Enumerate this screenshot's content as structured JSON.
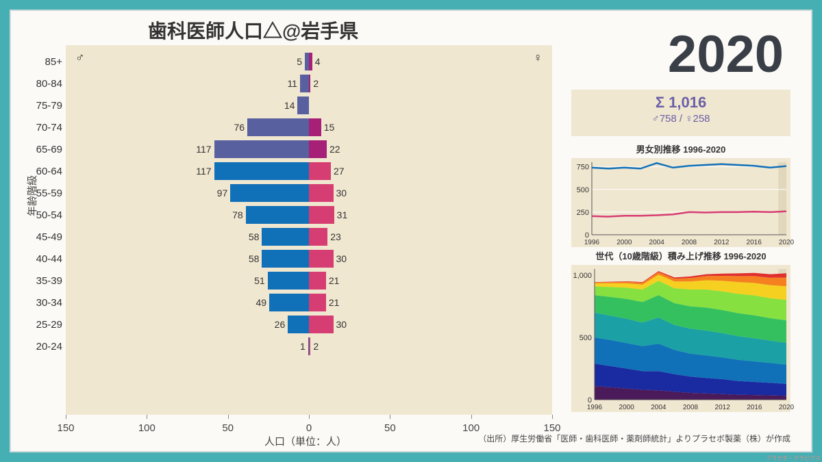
{
  "title": "歯科医師人口△@岩手県",
  "year": "2020",
  "summary": {
    "sigma": "Σ 1,016",
    "mf": "♂758 / ♀258"
  },
  "y_axis_label": "年齢階級",
  "x_axis_label": "人口（単位：人）",
  "signature": "プラセボ・グラピクス",
  "source": "（出所）厚生労働省「医師・歯科医師・薬剤師統計」よりプラセボ製薬（株）が作成",
  "pyramid": {
    "male_symbol": "♂",
    "female_symbol": "♀",
    "scale_max": 150,
    "xticks": [
      150,
      100,
      50,
      0,
      50,
      100,
      150
    ],
    "rows": [
      {
        "age": "85+",
        "m": 5,
        "f": 4,
        "old": true
      },
      {
        "age": "80-84",
        "m": 11,
        "f": 2,
        "old": true
      },
      {
        "age": "75-79",
        "m": 14,
        "f": 0,
        "old": true
      },
      {
        "age": "70-74",
        "m": 76,
        "f": 15,
        "old": true
      },
      {
        "age": "65-69",
        "m": 117,
        "f": 22,
        "old": true
      },
      {
        "age": "60-64",
        "m": 117,
        "f": 27,
        "old": false
      },
      {
        "age": "55-59",
        "m": 97,
        "f": 30,
        "old": false
      },
      {
        "age": "50-54",
        "m": 78,
        "f": 31,
        "old": false
      },
      {
        "age": "45-49",
        "m": 58,
        "f": 23,
        "old": false
      },
      {
        "age": "40-44",
        "m": 58,
        "f": 30,
        "old": false
      },
      {
        "age": "35-39",
        "m": 51,
        "f": 21,
        "old": false
      },
      {
        "age": "30-34",
        "m": 49,
        "f": 21,
        "old": false
      },
      {
        "age": "25-29",
        "m": 26,
        "f": 30,
        "old": false
      },
      {
        "age": "20-24",
        "m": 1,
        "f": 2,
        "old": false
      }
    ]
  },
  "mini1": {
    "title": "男女別推移 1996-2020",
    "ylim": [
      0,
      800
    ],
    "yticks": [
      0,
      250,
      500,
      750
    ],
    "years": [
      1996,
      1998,
      2000,
      2002,
      2004,
      2006,
      2008,
      2010,
      2012,
      2014,
      2016,
      2018,
      2020
    ],
    "xticks": [
      1996,
      2000,
      2004,
      2008,
      2012,
      2016,
      2020
    ],
    "male": [
      740,
      730,
      740,
      730,
      790,
      740,
      760,
      770,
      780,
      770,
      760,
      740,
      758
    ],
    "female": [
      205,
      200,
      210,
      210,
      215,
      225,
      250,
      245,
      250,
      250,
      255,
      250,
      258
    ],
    "male_color": "#1070b8",
    "female_color": "#d63d72",
    "highlight": "#e0d7bd"
  },
  "mini2": {
    "title": "世代（10歳階級）積み上げ推移 1996-2020",
    "ylim": [
      0,
      1050
    ],
    "yticks": [
      0,
      500,
      1000
    ],
    "xticks": [
      1996,
      2000,
      2004,
      2008,
      2012,
      2016,
      2020
    ],
    "years": [
      1996,
      1998,
      2000,
      2002,
      2004,
      2006,
      2008,
      2010,
      2012,
      2014,
      2016,
      2018,
      2020
    ],
    "colors": [
      "#4a1a5a",
      "#1a2aa0",
      "#1070b8",
      "#1aa0a5",
      "#35c060",
      "#85e040",
      "#f5d020",
      "#f58020",
      "#e03030"
    ],
    "series": [
      [
        110,
        100,
        90,
        80,
        75,
        65,
        55,
        50,
        45,
        40,
        38,
        35,
        32
      ],
      [
        180,
        170,
        160,
        150,
        155,
        140,
        130,
        125,
        120,
        110,
        105,
        100,
        95
      ],
      [
        210,
        210,
        205,
        200,
        220,
        195,
        185,
        180,
        175,
        170,
        165,
        160,
        155
      ],
      [
        200,
        195,
        195,
        190,
        210,
        200,
        200,
        200,
        195,
        190,
        185,
        180,
        175
      ],
      [
        140,
        150,
        160,
        165,
        180,
        175,
        180,
        185,
        185,
        185,
        185,
        180,
        180
      ],
      [
        70,
        80,
        90,
        100,
        115,
        120,
        135,
        145,
        150,
        155,
        160,
        160,
        165
      ],
      [
        25,
        30,
        35,
        40,
        50,
        55,
        65,
        75,
        85,
        95,
        100,
        105,
        110
      ],
      [
        8,
        10,
        12,
        15,
        20,
        22,
        28,
        34,
        40,
        48,
        55,
        60,
        70
      ],
      [
        2,
        3,
        4,
        5,
        8,
        10,
        12,
        14,
        18,
        22,
        25,
        28,
        34
      ]
    ],
    "highlight": "#e0d7bd"
  }
}
